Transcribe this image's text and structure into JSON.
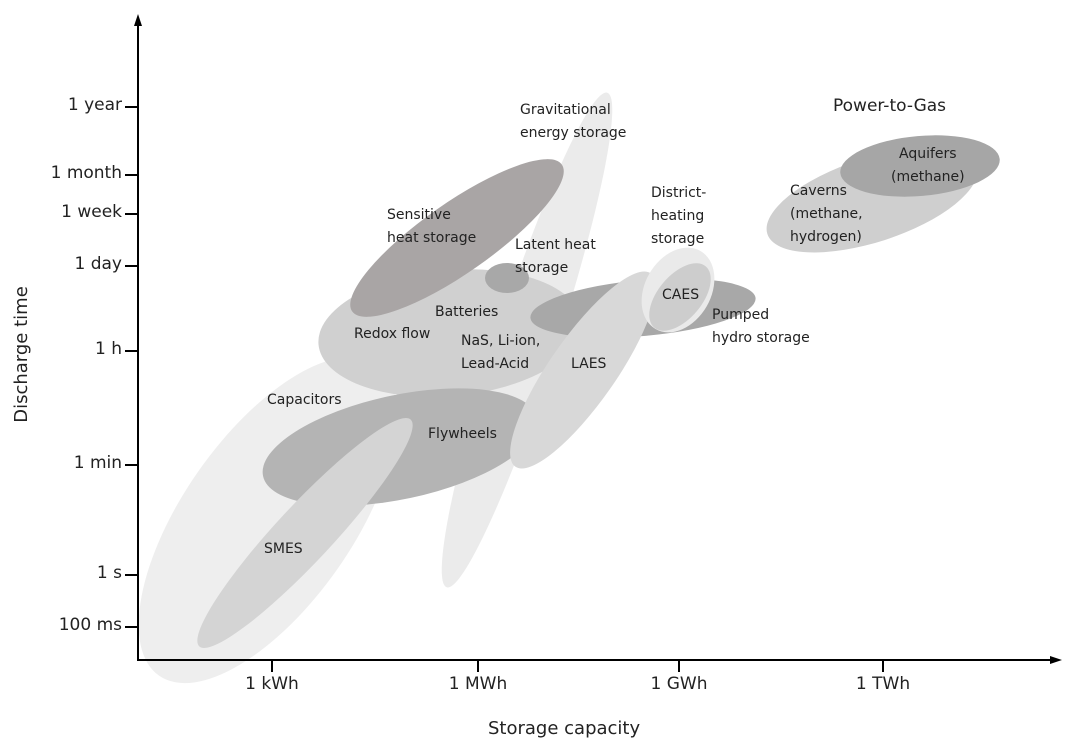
{
  "chart_data": {
    "type": "diagram",
    "xlabel": "Storage capacity",
    "ylabel": "Discharge time",
    "x_ticks": [
      "1 kWh",
      "1 MWh",
      "1 GWh",
      "1 TWh"
    ],
    "y_ticks": [
      "1 year",
      "1 month",
      "1 week",
      "1 day",
      "1 h",
      "1 min",
      "1 s",
      "100 ms"
    ],
    "group_title": "Power-to-Gas",
    "technologies": {
      "capacitors": "Capacitors",
      "gravitational": [
        "Gravitational",
        "energy storage"
      ],
      "sensitive_heat": [
        "Sensitive",
        "heat storage"
      ],
      "latent_heat": [
        "Latent heat",
        "storage"
      ],
      "batteries": "Batteries",
      "redox": "Redox flow",
      "nas": [
        "NaS, Li-ion,",
        "Lead-Acid"
      ],
      "laes": "LAES",
      "flywheels": "Flywheels",
      "smes": "SMES",
      "district": [
        "District-",
        "heating",
        "storage"
      ],
      "caes": "CAES",
      "pumped": [
        "Pumped",
        "hydro storage"
      ],
      "caverns": [
        "Caverns",
        "(methane,",
        "hydrogen)"
      ],
      "aquifers": [
        "Aquifers",
        "(methane)"
      ]
    }
  }
}
